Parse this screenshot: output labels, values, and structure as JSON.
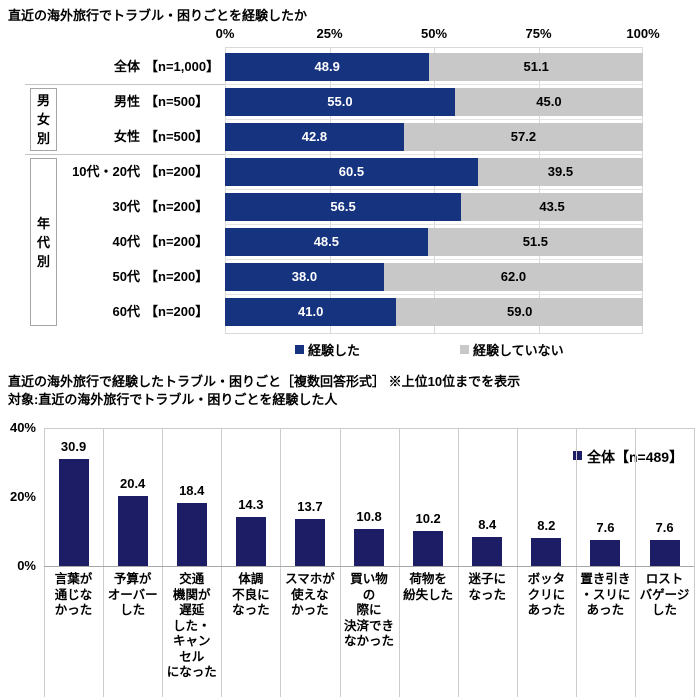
{
  "page": {
    "background": "#FFFFFF"
  },
  "chart_data": [
    {
      "type": "bar",
      "variant": "horizontal-stacked",
      "title": "直近の海外旅行でトラブル・困りごとを経験したか",
      "x_ticks": [
        "0%",
        "25%",
        "50%",
        "75%",
        "100%"
      ],
      "xlim": [
        0,
        100
      ],
      "legend": [
        "経験した",
        "経験していない"
      ],
      "legend_position": "bottom",
      "series_colors": [
        "#15337F",
        "#C8C8C8"
      ],
      "grid_color": "#D9D9D9",
      "groups": [
        {
          "label": "男女別",
          "row_span": [
            1,
            2
          ]
        },
        {
          "label": "年代別",
          "row_span": [
            3,
            7
          ]
        }
      ],
      "rows": [
        {
          "category": "全体",
          "n_label": "【n=1,000】",
          "values": [
            48.9,
            51.1
          ]
        },
        {
          "category": "男性",
          "n_label": "【n=500】",
          "values": [
            55.0,
            45.0
          ]
        },
        {
          "category": "女性",
          "n_label": "【n=500】",
          "values": [
            42.8,
            57.2
          ]
        },
        {
          "category": "10代・20代",
          "n_label": "【n=200】",
          "values": [
            60.5,
            39.5
          ]
        },
        {
          "category": "30代",
          "n_label": "【n=200】",
          "values": [
            56.5,
            43.5
          ]
        },
        {
          "category": "40代",
          "n_label": "【n=200】",
          "values": [
            48.5,
            51.5
          ]
        },
        {
          "category": "50代",
          "n_label": "【n=200】",
          "values": [
            38.0,
            62.0
          ]
        },
        {
          "category": "60代",
          "n_label": "【n=200】",
          "values": [
            41.0,
            59.0
          ]
        }
      ]
    },
    {
      "type": "bar",
      "variant": "vertical",
      "title": "直近の海外旅行で経験したトラブル・困りごと［複数回答形式］ ※上位10位までを表示",
      "subtitle": "対象:直近の海外旅行でトラブル・困りごとを経験した人",
      "legend": "全体【n=489】",
      "legend_position": "top-right",
      "bar_color": "#1D1D66",
      "grid_color": "#CCCCCC",
      "y_ticks": [
        {
          "label": "40%",
          "value": 40
        },
        {
          "label": "20%",
          "value": 20
        },
        {
          "label": "0%",
          "value": 0
        }
      ],
      "ylim": [
        0,
        40
      ],
      "categories": [
        "言葉が通じなかった",
        "予算がオーバーした",
        "交通機関が遅延した・キャンセルになった",
        "体調不良になった",
        "スマホが使えなかった",
        "買い物の際に決済できなかった",
        "荷物を紛失した",
        "迷子になった",
        "ボッタクリにあった",
        "置き引き・スリにあった",
        "ロストバゲージした"
      ],
      "category_lines": [
        "言葉が\n通じな\nかった",
        "予算が\nオーバー\nした",
        "交通\n機関が\n遅延\nした・\nキャン\nセル\nになった",
        "体調\n不良に\nなった",
        "スマホが\n使えな\nかった",
        "買い物\nの\n際に\n決済でき\nなかった",
        "荷物を\n紛失した",
        "迷子に\nなった",
        "ボッタ\nクリに\nあった",
        "置き引き\n・スリに\nあった",
        "ロスト\nバゲージ\nした"
      ],
      "values": [
        30.9,
        20.4,
        18.4,
        14.3,
        13.7,
        10.8,
        10.2,
        8.4,
        8.2,
        7.6,
        7.6
      ]
    }
  ]
}
